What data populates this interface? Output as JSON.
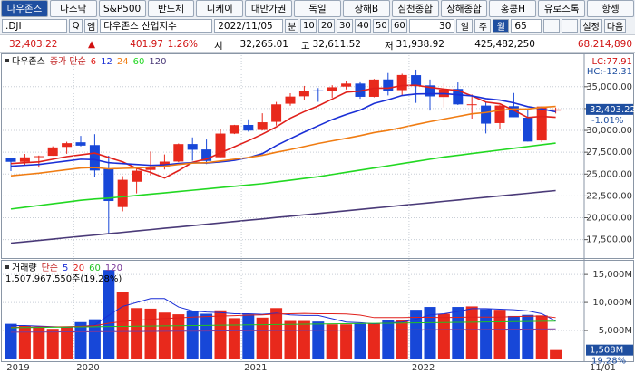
{
  "tabs": [
    "다우존스",
    "나스닥",
    "S&P500",
    "반도체",
    "니케이",
    "대만가권",
    "독일",
    "상해B",
    "심천종합",
    "상해종합",
    "홍콩H",
    "유로스톡",
    "항셍"
  ],
  "toolbar": {
    "symbol": ".DJI",
    "search": "Q",
    "icon": "엠",
    "name": "다우존스 산업지수",
    "date": "2022/11/05",
    "unit": "분",
    "periods": [
      "10",
      "20",
      "30",
      "40",
      "50",
      "60"
    ],
    "count": "30",
    "frames": [
      "일",
      "주",
      "월"
    ],
    "active_frame": 2,
    "bars": "65",
    "settings": "설정",
    "next": "다음"
  },
  "info_bar": [
    "32,403.22",
    "▲",
    "401.97",
    "1.26%",
    "시",
    "32,265.01",
    "고",
    "32,611.52",
    "저",
    "31,938.92",
    "425,482,250",
    "68,214,890"
  ],
  "chart_data": [
    {
      "type": "candlestick",
      "name": "다우존스",
      "legend_title": "종가 단순",
      "up_color": "#e8291c",
      "down_color": "#1747d8",
      "annotations": [
        "LC:77.91",
        "HC:-12.31"
      ],
      "change_label": "-1.01%",
      "categories": [
        "2019",
        null,
        null,
        null,
        null,
        "2020",
        null,
        null,
        null,
        null,
        null,
        null,
        null,
        null,
        null,
        null,
        null,
        "2021",
        null,
        null,
        null,
        null,
        null,
        null,
        null,
        null,
        null,
        null,
        null,
        "2022",
        null,
        null,
        null,
        null,
        null,
        null,
        null,
        null,
        null,
        "11/01"
      ],
      "open": [
        26864,
        26400,
        26962,
        27094,
        28110,
        28639,
        28320,
        25591,
        21227,
        24120,
        25475,
        25879,
        26437,
        28439,
        27816,
        26925,
        29638,
        30627,
        30054,
        30982,
        33054,
        33904,
        34584,
        34507,
        35012,
        35360,
        33843,
        35834,
        34612,
        36321,
        35153,
        33820,
        34750,
        32969,
        32843,
        30838,
        32775,
        31456,
        28855,
        32265.01
      ],
      "high": [
        26864,
        27306,
        27122,
        28175,
        28701,
        29374,
        29568,
        27102,
        24765,
        25758,
        27580,
        27245,
        28502,
        29199,
        28958,
        30116,
        30637,
        31272,
        31961,
        33259,
        34256,
        35091,
        34849,
        35171,
        35631,
        35510,
        35892,
        36566,
        36488,
        36953,
        35824,
        35372,
        35492,
        34118,
        33280,
        32913,
        34281,
        32504,
        32749,
        32611.52
      ],
      "low": [
        25339,
        25978,
        25743,
        27094,
        27325,
        28169,
        24681,
        18214,
        20735,
        22790,
        24843,
        25524,
        26365,
        26537,
        26144,
        26925,
        29581,
        29856,
        29987,
        30547,
        32826,
        33473,
        33271,
        33742,
        34690,
        33613,
        33785,
        34006,
        34006,
        33150,
        32272,
        32632,
        32913,
        31353,
        29653,
        30144,
        31510,
        28715,
        28660,
        31938.92
      ],
      "close": [
        26403,
        26917,
        27046,
        28051,
        28538,
        28256,
        25409,
        21917,
        24346,
        25383,
        25813,
        26428,
        28430,
        27781,
        26501,
        29638,
        30606,
        29982,
        30932,
        32981,
        33875,
        34529,
        34503,
        34935,
        35361,
        33844,
        35820,
        34484,
        36338,
        35132,
        33893,
        34678,
        32977,
        32990,
        30775,
        32845,
        31510,
        28725,
        32733,
        32403.22
      ],
      "value_labels": [
        null,
        null,
        null,
        null,
        null,
        null,
        null,
        null,
        null,
        null,
        null,
        null,
        null,
        null,
        null,
        null,
        null,
        null,
        null,
        null,
        null,
        null,
        null,
        null,
        null,
        null,
        null,
        null,
        null,
        null,
        null,
        null,
        null,
        null,
        null,
        null,
        null,
        null,
        null,
        "32,403.22"
      ],
      "series": [
        {
          "name": "6",
          "color": "#e0201b",
          "values": [
            26200,
            26300,
            26400,
            26700,
            27000,
            27200,
            27400,
            26900,
            26400,
            25650,
            25200,
            24550,
            25390,
            26350,
            26720,
            27430,
            28130,
            28820,
            29570,
            30400,
            31400,
            32150,
            32800,
            33590,
            34370,
            34510,
            34830,
            34830,
            35130,
            35170,
            34920,
            34730,
            34580,
            33950,
            33240,
            33040,
            32300,
            31470,
            31600,
            31500
          ]
        },
        {
          "name": "12",
          "color": "#1a2fd6",
          "values": [
            25900,
            26000,
            26100,
            26300,
            26500,
            26700,
            26650,
            26300,
            26200,
            26100,
            26000,
            26050,
            26220,
            26300,
            26260,
            26390,
            26570,
            26880,
            27340,
            28260,
            29050,
            29810,
            30530,
            31240,
            31820,
            32320,
            33090,
            33500,
            33990,
            34170,
            34200,
            34210,
            34080,
            33950,
            33640,
            33470,
            33150,
            32720,
            32460,
            32130
          ]
        },
        {
          "name": "24",
          "color": "#f07c12",
          "values": [
            24800,
            24950,
            25100,
            25300,
            25500,
            25700,
            25750,
            25600,
            25650,
            25700,
            25800,
            25900,
            26100,
            26250,
            26300,
            26500,
            26700,
            26900,
            27150,
            27500,
            27800,
            28150,
            28500,
            28800,
            29090,
            29400,
            29750,
            30000,
            30330,
            30670,
            31000,
            31300,
            31600,
            31900,
            32050,
            32300,
            32450,
            32450,
            32640,
            32740
          ]
        },
        {
          "name": "60",
          "color": "#22d822",
          "values": [
            21000,
            21200,
            21400,
            21600,
            21800,
            22000,
            22150,
            22250,
            22400,
            22550,
            22700,
            22850,
            23000,
            23150,
            23300,
            23450,
            23600,
            23750,
            23900,
            24100,
            24300,
            24500,
            24700,
            24950,
            25200,
            25450,
            25700,
            25950,
            26200,
            26450,
            26700,
            26950,
            27150,
            27350,
            27550,
            27750,
            27950,
            28150,
            28350,
            28550
          ]
        },
        {
          "name": "120",
          "color": "#4a3a78",
          "values": [
            17100,
            17250,
            17400,
            17560,
            17720,
            17870,
            18020,
            18180,
            18330,
            18490,
            18640,
            18800,
            18950,
            19100,
            19260,
            19410,
            19570,
            19720,
            19870,
            20030,
            20180,
            20340,
            20490,
            20640,
            20800,
            20950,
            21110,
            21260,
            21420,
            21570,
            21720,
            21880,
            22030,
            22190,
            22340,
            22500,
            22650,
            22800,
            22960,
            23110
          ]
        }
      ],
      "ylim": [
        15700,
        38400
      ],
      "yticks": [
        {
          "value": 17500,
          "label": "17,500.00"
        },
        {
          "value": 20000,
          "label": "20,000.00"
        },
        {
          "value": 22500,
          "label": "22,500.00"
        },
        {
          "value": 25000,
          "label": "25,000.00"
        },
        {
          "value": 27500,
          "label": "27,500.00"
        },
        {
          "value": 30000,
          "label": "30,000.00"
        },
        {
          "value": 32500,
          "label": "32,500.00"
        },
        {
          "value": 35000,
          "label": "35,000.00"
        }
      ],
      "grid": true
    },
    {
      "type": "bar",
      "name": "거래량",
      "legend_title": "단순",
      "subtitle": "1,507,967,550주(19.28%)",
      "change_label": "19.28%",
      "values": [
        6200,
        5900,
        5600,
        5300,
        5600,
        6500,
        7000,
        15800,
        11800,
        9000,
        8900,
        8200,
        7900,
        8500,
        8000,
        8600,
        7200,
        7900,
        7300,
        9000,
        6700,
        6700,
        6600,
        6100,
        6100,
        6200,
        6300,
        6900,
        6800,
        8700,
        9200,
        8000,
        9200,
        9300,
        8800,
        8700,
        7600,
        7800,
        7700,
        1508
      ],
      "value_labels": [
        null,
        null,
        null,
        null,
        null,
        null,
        null,
        null,
        null,
        null,
        null,
        null,
        null,
        null,
        null,
        null,
        null,
        null,
        null,
        null,
        null,
        null,
        null,
        null,
        null,
        null,
        null,
        null,
        null,
        null,
        null,
        null,
        null,
        null,
        null,
        null,
        null,
        null,
        null,
        "1,508M"
      ],
      "series": [
        {
          "name": "5",
          "color": "#1a2fd6",
          "values": [
            5900,
            5900,
            5800,
            5700,
            5600,
            5700,
            6000,
            7700,
            9300,
            10000,
            10700,
            10700,
            9200,
            8500,
            8300,
            8200,
            8000,
            8000,
            7900,
            8100,
            7800,
            7700,
            7700,
            7100,
            6500,
            6400,
            6200,
            6400,
            6500,
            7000,
            7800,
            8000,
            8400,
            8900,
            8900,
            8800,
            8700,
            8500,
            8000,
            6700
          ]
        },
        {
          "name": "20",
          "color": "#e0201b",
          "values": [
            5600,
            5600,
            5650,
            5650,
            5700,
            5750,
            5850,
            6300,
            6600,
            6800,
            7000,
            7150,
            7250,
            7400,
            7500,
            7600,
            7650,
            7750,
            7800,
            7950,
            8000,
            8050,
            8000,
            8000,
            7950,
            7750,
            7300,
            7300,
            7300,
            7350,
            7350,
            7300,
            7350,
            7400,
            7400,
            7400,
            7500,
            7550,
            7600,
            7300
          ]
        },
        {
          "name": "60",
          "color": "#22c322",
          "values": [
            5500,
            5530,
            5560,
            5590,
            5620,
            5650,
            5680,
            5710,
            5740,
            5770,
            5800,
            5830,
            5860,
            5890,
            5920,
            5950,
            5980,
            6010,
            6040,
            6070,
            6100,
            6130,
            6160,
            6190,
            6220,
            6250,
            6280,
            6310,
            6340,
            6370,
            6400,
            6430,
            6460,
            6490,
            6520,
            6550,
            6580,
            6610,
            6640,
            6670
          ]
        },
        {
          "name": "120",
          "color": "#7a3a9a",
          "values": [
            4700,
            4715,
            4730,
            4745,
            4760,
            4775,
            4790,
            4805,
            4820,
            4835,
            4850,
            4865,
            4880,
            4895,
            4910,
            4925,
            4940,
            4955,
            4970,
            4985,
            5000,
            5015,
            5030,
            5045,
            5060,
            5075,
            5090,
            5105,
            5120,
            5135,
            5150,
            5165,
            5180,
            5195,
            5210,
            5225,
            5240,
            5255,
            5270,
            5285
          ]
        }
      ],
      "ylim": [
        0,
        16800
      ],
      "yticks": [
        {
          "value": 5000,
          "label": "5,000M"
        },
        {
          "value": 10000,
          "label": "10,000M"
        },
        {
          "value": 15000,
          "label": "15,000M"
        }
      ],
      "grid": true
    }
  ]
}
